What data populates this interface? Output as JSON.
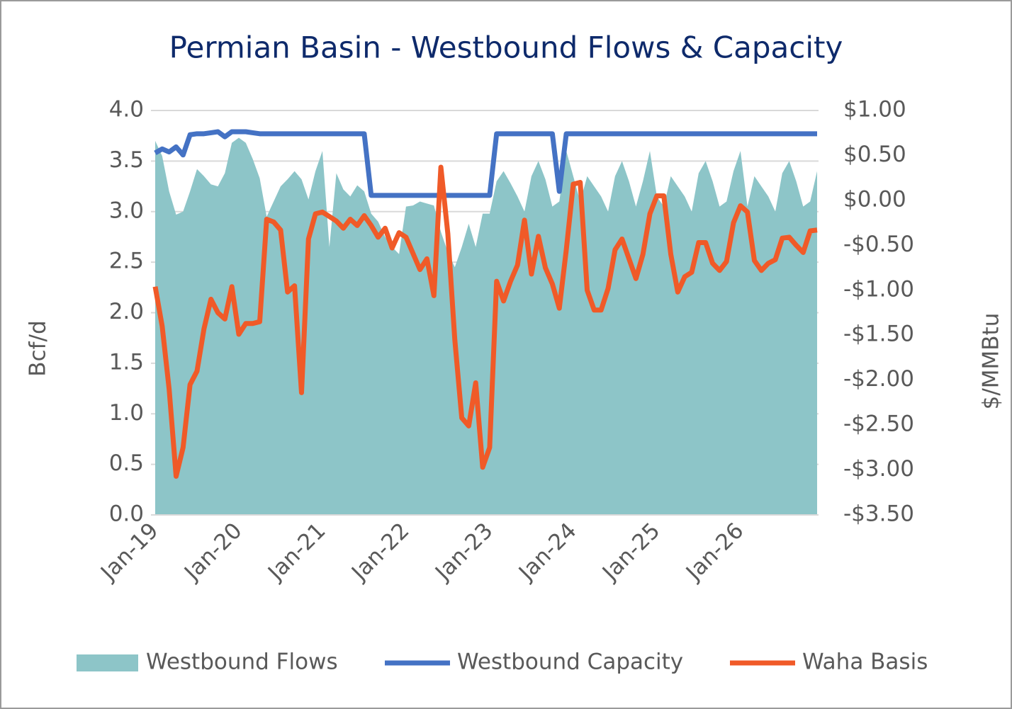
{
  "chart_data": {
    "type": "combo",
    "title": "Permian Basin - Westbound Flows & Capacity",
    "y_label": "Bcf/d",
    "y2_label": "$/MMBtu",
    "categories": [
      "Jan-19",
      null,
      null,
      null,
      null,
      null,
      null,
      null,
      null,
      null,
      null,
      null,
      "Jan-20",
      null,
      null,
      null,
      null,
      null,
      null,
      null,
      null,
      null,
      null,
      null,
      "Jan-21",
      null,
      null,
      null,
      null,
      null,
      null,
      null,
      null,
      null,
      null,
      null,
      "Jan-22",
      null,
      null,
      null,
      null,
      null,
      null,
      null,
      null,
      null,
      null,
      null,
      "Jan-23",
      null,
      null,
      null,
      null,
      null,
      null,
      null,
      null,
      null,
      null,
      null,
      "Jan-24",
      null,
      null,
      null,
      null,
      null,
      null,
      null,
      null,
      null,
      null,
      null,
      "Jan-25",
      null,
      null,
      null,
      null,
      null,
      null,
      null,
      null,
      null,
      null,
      null,
      "Jan-26",
      null,
      null,
      null,
      null,
      null,
      null,
      null,
      null,
      null,
      null,
      null
    ],
    "ylim": [
      0,
      4
    ],
    "yticks": [
      {
        "value": 0,
        "label": "0.0"
      },
      0.5,
      {
        "value": 1,
        "label": "1.0"
      },
      1.5,
      {
        "value": 2,
        "label": "2.0"
      },
      2.5,
      {
        "value": 3,
        "label": "3.0"
      },
      3.5,
      {
        "value": 4,
        "label": "4.0"
      }
    ],
    "y2lim": [
      -3.5,
      1
    ],
    "y2ticks": [
      {
        "value": -3.5,
        "label": "-$3.50"
      },
      {
        "value": -3,
        "label": "-$3.00"
      },
      {
        "value": -2.5,
        "label": "-$2.50"
      },
      {
        "value": -2,
        "label": "-$2.00"
      },
      {
        "value": -1.5,
        "label": "-$1.50"
      },
      {
        "value": -1,
        "label": "-$1.00"
      },
      {
        "value": -0.5,
        "label": "-$0.50"
      },
      {
        "value": 0,
        "label": "$0.00"
      },
      {
        "value": 0.5,
        "label": "$0.50"
      },
      {
        "value": 1,
        "label": "$1.00"
      }
    ],
    "grid": true,
    "series": [
      {
        "name": "Westbound Flows",
        "type": "area",
        "color": "#8dc5c8",
        "values": [
          3.7,
          3.55,
          3.2,
          2.97,
          3.0,
          3.2,
          3.42,
          3.35,
          3.27,
          3.25,
          3.38,
          3.68,
          3.73,
          3.68,
          3.52,
          3.33,
          2.95,
          3.1,
          3.25,
          3.32,
          3.4,
          3.32,
          3.12,
          3.4,
          3.6,
          2.65,
          3.38,
          3.22,
          3.15,
          3.26,
          3.2,
          2.98,
          2.9,
          2.75,
          2.65,
          2.58,
          3.05,
          3.06,
          3.1,
          3.08,
          3.06,
          2.8,
          2.6,
          2.45,
          2.65,
          2.88,
          2.65,
          2.98,
          2.98,
          3.3,
          3.4,
          3.28,
          3.15,
          3.0,
          3.35,
          3.5,
          3.32,
          3.05,
          3.1,
          3.6,
          3.35,
          3.1,
          3.35,
          3.25,
          3.15,
          3.0,
          3.35,
          3.5,
          3.3,
          3.05,
          3.3,
          3.6,
          3.15,
          3.05,
          3.35,
          3.25,
          3.15,
          3.0,
          3.38,
          3.5,
          3.3,
          3.05,
          3.1,
          3.4,
          3.6,
          3.05,
          3.35,
          3.25,
          3.15,
          3.0,
          3.38,
          3.5,
          3.3,
          3.05,
          3.1,
          3.4
        ]
      },
      {
        "name": "Westbound Capacity",
        "type": "line",
        "color": "#4472c4",
        "values": [
          3.58,
          3.62,
          3.59,
          3.64,
          3.56,
          3.76,
          3.77,
          3.77,
          3.78,
          3.79,
          3.74,
          3.79,
          3.79,
          3.79,
          3.78,
          3.77,
          3.77,
          3.77,
          3.77,
          3.77,
          3.77,
          3.77,
          3.77,
          3.77,
          3.77,
          3.77,
          3.77,
          3.77,
          3.77,
          3.77,
          3.77,
          3.16,
          3.16,
          3.16,
          3.16,
          3.16,
          3.16,
          3.16,
          3.16,
          3.16,
          3.16,
          3.16,
          3.16,
          3.16,
          3.16,
          3.16,
          3.16,
          3.16,
          3.16,
          3.77,
          3.77,
          3.77,
          3.77,
          3.77,
          3.77,
          3.77,
          3.77,
          3.77,
          3.2,
          3.77,
          3.77,
          3.77,
          3.77,
          3.77,
          3.77,
          3.77,
          3.77,
          3.77,
          3.77,
          3.77,
          3.77,
          3.77,
          3.77,
          3.77,
          3.77,
          3.77,
          3.77,
          3.77,
          3.77,
          3.77,
          3.77,
          3.77,
          3.77,
          3.77,
          3.77,
          3.77,
          3.77,
          3.77,
          3.77,
          3.77,
          3.77,
          3.77,
          3.77,
          3.77,
          3.77,
          3.77
        ]
      },
      {
        "name": "Waha Basis",
        "type": "line",
        "axis": "y2",
        "color": "#f05a28",
        "values": [
          -0.96,
          -1.4,
          -2.1,
          -3.07,
          -2.75,
          -2.05,
          -1.9,
          -1.43,
          -1.1,
          -1.25,
          -1.32,
          -0.96,
          -1.49,
          -1.37,
          -1.37,
          -1.35,
          -0.21,
          -0.24,
          -0.33,
          -1.02,
          -0.95,
          -2.14,
          -0.43,
          -0.15,
          -0.13,
          -0.18,
          -0.23,
          -0.31,
          -0.21,
          -0.28,
          -0.17,
          -0.28,
          -0.41,
          -0.31,
          -0.53,
          -0.36,
          -0.41,
          -0.59,
          -0.77,
          -0.65,
          -1.06,
          0.37,
          -0.37,
          -1.55,
          -2.42,
          -2.51,
          -2.03,
          -2.97,
          -2.75,
          -0.9,
          -1.12,
          -0.9,
          -0.72,
          -0.22,
          -0.82,
          -0.4,
          -0.75,
          -0.93,
          -1.2,
          -0.55,
          0.18,
          0.2,
          -1.0,
          -1.22,
          -1.22,
          -0.98,
          -0.55,
          -0.43,
          -0.65,
          -0.87,
          -0.6,
          -0.15,
          0.05,
          0.05,
          -0.6,
          -1.02,
          -0.85,
          -0.8,
          -0.47,
          -0.47,
          -0.7,
          -0.78,
          -0.68,
          -0.25,
          -0.06,
          -0.13,
          -0.67,
          -0.78,
          -0.7,
          -0.66,
          -0.42,
          -0.41,
          -0.5,
          -0.58,
          -0.34,
          -0.33
        ]
      }
    ]
  }
}
